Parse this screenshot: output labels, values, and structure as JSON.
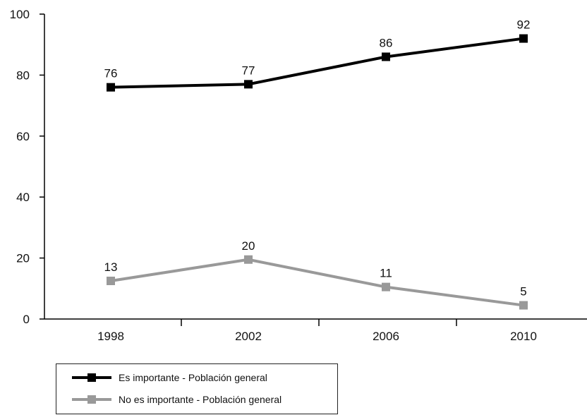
{
  "chart_data": {
    "type": "line",
    "categories": [
      "1998",
      "2002",
      "2006",
      "2010"
    ],
    "ylim": [
      0,
      100
    ],
    "yticks": [
      0,
      20,
      40,
      60,
      80,
      100
    ],
    "series": [
      {
        "name": "Es importante - Población general",
        "color": "#000000",
        "values": [
          76,
          77,
          86,
          92
        ],
        "labels": [
          "76",
          "77",
          "86",
          "92"
        ]
      },
      {
        "name": "No es importante - Población general",
        "color": "#999999",
        "values": [
          12.5,
          19.5,
          10.5,
          4.5
        ],
        "labels": [
          "13",
          "20",
          "11",
          "5"
        ]
      }
    ],
    "legend_position": "bottom-left"
  }
}
